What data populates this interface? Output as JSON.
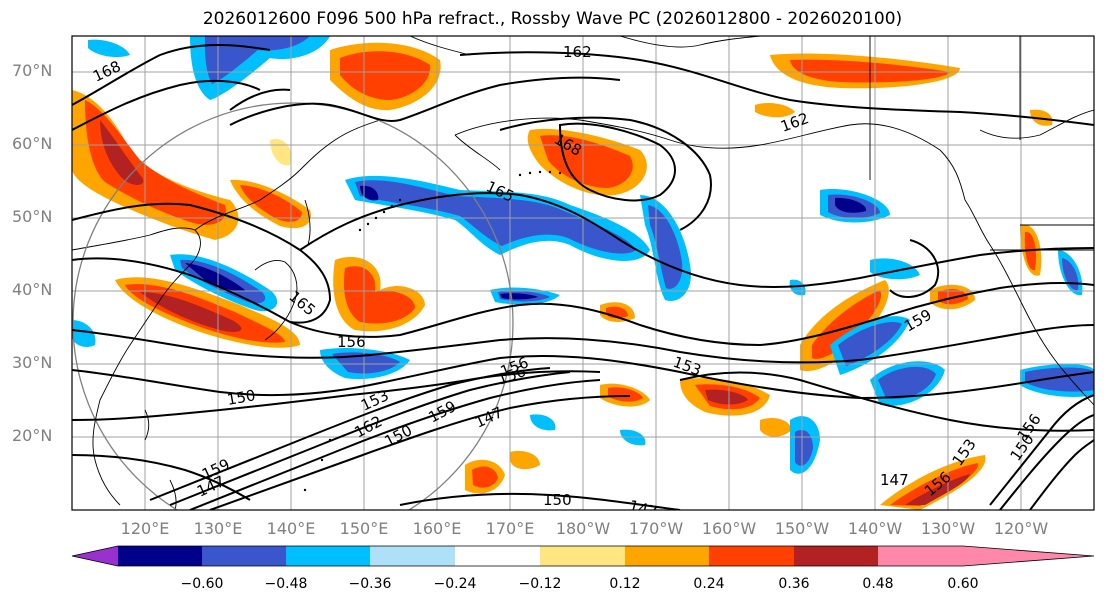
{
  "title": "2026012600 F096 500 hPa refract., Rossby Wave PC (2026012800 - 2026020100)",
  "lat_labels": [
    "70°N",
    "60°N",
    "50°N",
    "40°N",
    "30°N",
    "20°N"
  ],
  "lon_labels": [
    "120°E",
    "130°E",
    "140°E",
    "150°E",
    "160°E",
    "170°E",
    "180°W",
    "170°W",
    "160°W",
    "150°W",
    "140°W",
    "130°W",
    "120°W"
  ],
  "contour_labels": [
    "168",
    "162",
    "162",
    "168",
    "165",
    "165",
    "156",
    "156",
    "150",
    "153",
    "162",
    "150",
    "159",
    "147",
    "156",
    "153",
    "159",
    "147",
    "147",
    "150",
    "147",
    "156",
    "153",
    "150",
    "156",
    "159"
  ],
  "colorbar": {
    "ticks": [
      "−0.60",
      "−0.48",
      "−0.36",
      "−0.24",
      "−0.12",
      "0.12",
      "0.24",
      "0.36",
      "0.48",
      "0.60"
    ],
    "colors": [
      "#9b30d0",
      "#00008b",
      "#3a56cc",
      "#00bfff",
      "#aee0fa",
      "#ffffff",
      "#ffe680",
      "#ffa500",
      "#ff4000",
      "#b22222",
      "#ff88aa"
    ]
  },
  "chart_data": {
    "type": "map",
    "title": "2026012600 F096 500 hPa refract., Rossby Wave PC (2026012800 - 2026020100)",
    "projection": "equirectangular",
    "lat_range": [
      10,
      75
    ],
    "lon_range": [
      110,
      250
    ],
    "shading_levels": [
      -0.6,
      -0.48,
      -0.36,
      -0.24,
      -0.12,
      0.12,
      0.24,
      0.36,
      0.48,
      0.6
    ],
    "contour_values": [
      147,
      150,
      153,
      156,
      159,
      162,
      165,
      168
    ]
  }
}
